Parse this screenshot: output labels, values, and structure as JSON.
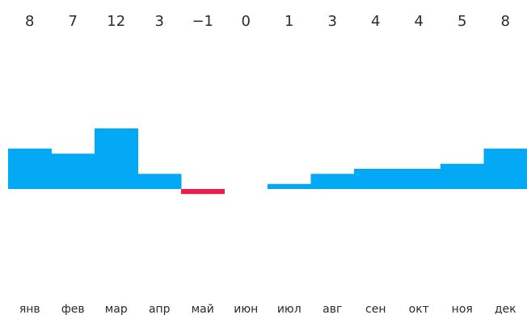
{
  "chart_data": {
    "type": "bar",
    "categories": [
      "янв",
      "фев",
      "мар",
      "апр",
      "май",
      "июн",
      "июл",
      "авг",
      "сен",
      "окт",
      "ноя",
      "дек"
    ],
    "values": [
      8,
      7,
      12,
      3,
      -1,
      0,
      1,
      3,
      4,
      4,
      5,
      8
    ],
    "value_labels": [
      "8",
      "7",
      "12",
      "3",
      "−1",
      "0",
      "1",
      "3",
      "4",
      "4",
      "5",
      "8"
    ],
    "colors": {
      "positive": "#03A9F4",
      "negative": "#E91E4D"
    },
    "grid": false,
    "legend": "none"
  }
}
